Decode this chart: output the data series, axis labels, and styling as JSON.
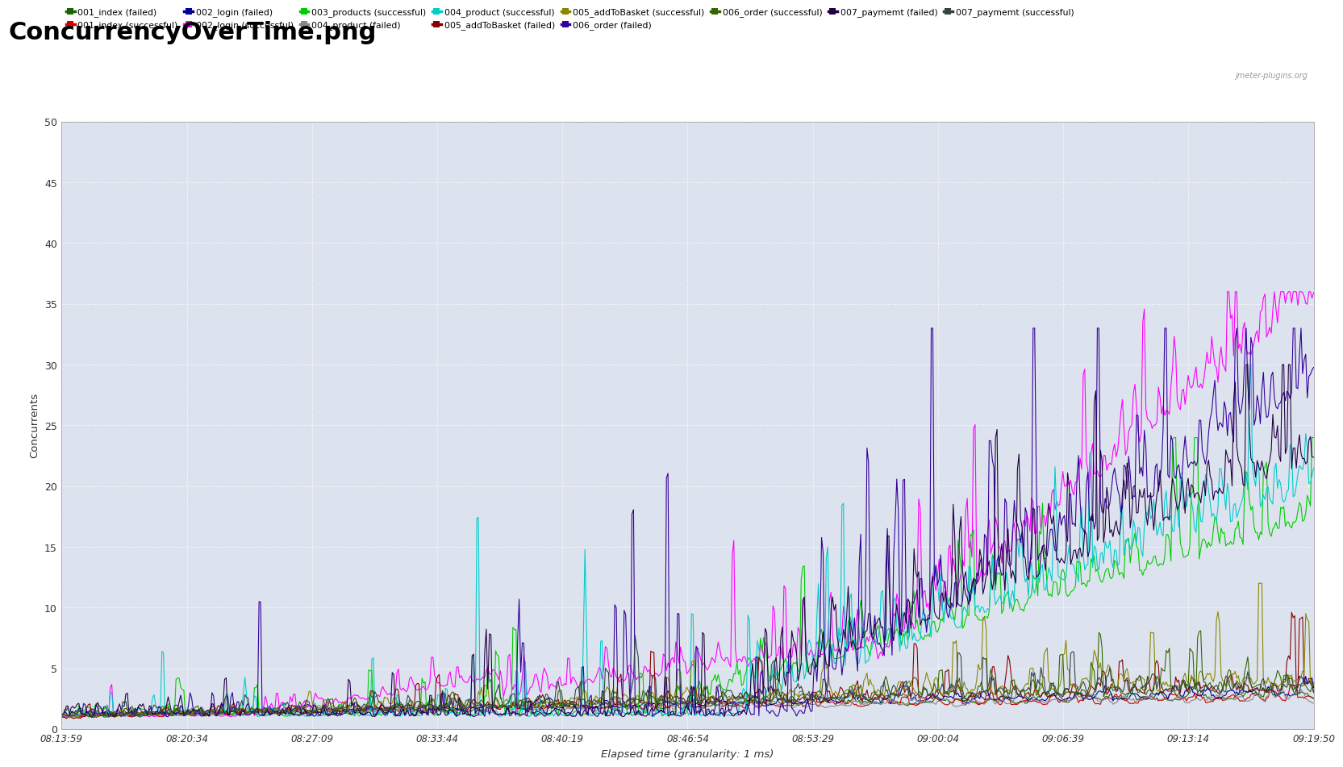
{
  "title": "ConcurrencyOverTime.png",
  "xlabel": "Elapsed time (granularity: 1 ms)",
  "ylabel": "Concurrents",
  "watermark": "jmeter-plugins.org",
  "fig_bg_color": "#ffffff",
  "plot_bg_color": "#dde3ee",
  "ylim": [
    0,
    50
  ],
  "yticks": [
    0,
    5,
    10,
    15,
    20,
    25,
    30,
    35,
    40,
    45,
    50
  ],
  "xtick_labels": [
    "08:13:59",
    "08:20:34",
    "08:27:09",
    "08:33:44",
    "08:40:19",
    "08:46:54",
    "08:53:29",
    "09:00:04",
    "09:06:39",
    "09:13:14",
    "09:19:50"
  ],
  "series": [
    {
      "label": "001_index (failed)",
      "color": "#1a6600",
      "lw": 0.8
    },
    {
      "label": "001_index (successful)",
      "color": "#cc0000",
      "lw": 0.8
    },
    {
      "label": "002_login (failed)",
      "color": "#000099",
      "lw": 0.8
    },
    {
      "label": "002_login (successful)",
      "color": "#ff00ff",
      "lw": 0.8
    },
    {
      "label": "003_products (successful)",
      "color": "#00cc00",
      "lw": 0.8
    },
    {
      "label": "004_product (failed)",
      "color": "#888888",
      "lw": 0.8
    },
    {
      "label": "004_product (successful)",
      "color": "#00cccc",
      "lw": 0.8
    },
    {
      "label": "005_addToBasket (failed)",
      "color": "#880000",
      "lw": 0.8
    },
    {
      "label": "005_addToBasket (successful)",
      "color": "#888800",
      "lw": 0.8
    },
    {
      "label": "006_order (failed)",
      "color": "#330099",
      "lw": 0.8
    },
    {
      "label": "006_order (successful)",
      "color": "#336600",
      "lw": 0.8
    },
    {
      "label": "007_paymemt (failed)",
      "color": "#220044",
      "lw": 0.8
    },
    {
      "label": "007_paymemt (successful)",
      "color": "#334444",
      "lw": 0.8
    }
  ],
  "n_points": 800,
  "seed": 7
}
